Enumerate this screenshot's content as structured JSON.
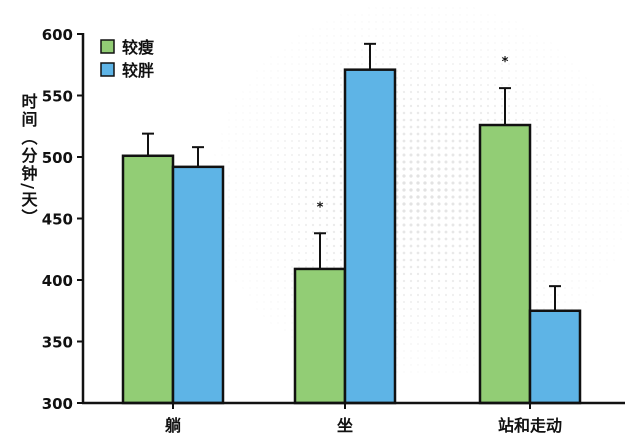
{
  "chart_data": {
    "type": "bar",
    "title": "",
    "xlabel": "",
    "ylabel": "时间（分钟/天）",
    "categories": [
      "躺",
      "坐",
      "站和走动"
    ],
    "series": [
      {
        "name": "较瘦",
        "color": "#92cd75",
        "values": [
          501,
          409,
          526
        ],
        "errors": [
          18,
          29,
          30
        ],
        "significance": [
          "",
          "*",
          "*"
        ]
      },
      {
        "name": "较胖",
        "color": "#5eb4e6",
        "values": [
          492,
          571,
          375
        ],
        "errors": [
          16,
          21,
          20
        ],
        "significance": [
          "",
          "",
          ""
        ]
      }
    ],
    "ylim": [
      300,
      600
    ],
    "yticks": [
      300,
      350,
      400,
      450,
      500,
      550,
      600
    ],
    "legend_position": "top-left",
    "grid": false
  }
}
